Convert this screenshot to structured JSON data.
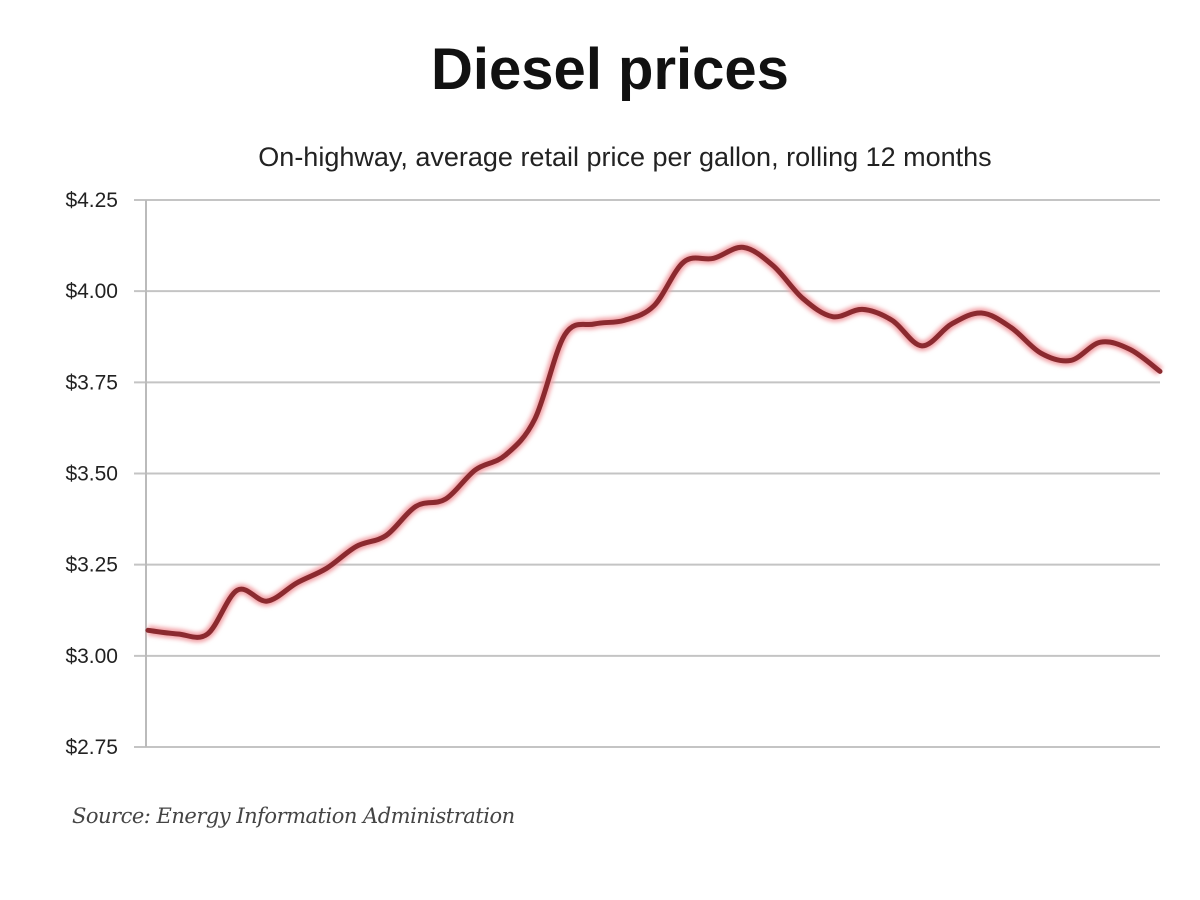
{
  "chart_data": {
    "type": "line",
    "title": "Diesel prices",
    "subtitle": "On-highway, average retail price per gallon, rolling 12 months",
    "source": "Source: Energy Information Administration",
    "xlabel": "",
    "ylabel": "",
    "ylim": [
      2.75,
      4.25
    ],
    "y_ticks": [
      2.75,
      3.0,
      3.25,
      3.5,
      3.75,
      4.0,
      4.25
    ],
    "y_tick_labels": [
      "$2.75",
      "$3.00",
      "$3.25",
      "$3.50",
      "$3.75",
      "$4.00",
      "$4.25"
    ],
    "grid": true,
    "series": [
      {
        "name": "Diesel price",
        "color": "#8b2a2f",
        "values": [
          3.07,
          3.06,
          3.06,
          3.18,
          3.15,
          3.2,
          3.24,
          3.3,
          3.33,
          3.41,
          3.43,
          3.51,
          3.55,
          3.65,
          3.88,
          3.91,
          3.92,
          3.96,
          4.08,
          4.09,
          4.12,
          4.07,
          3.98,
          3.93,
          3.95,
          3.92,
          3.85,
          3.91,
          3.94,
          3.9,
          3.83,
          3.81,
          3.86,
          3.84,
          3.78
        ]
      }
    ]
  }
}
